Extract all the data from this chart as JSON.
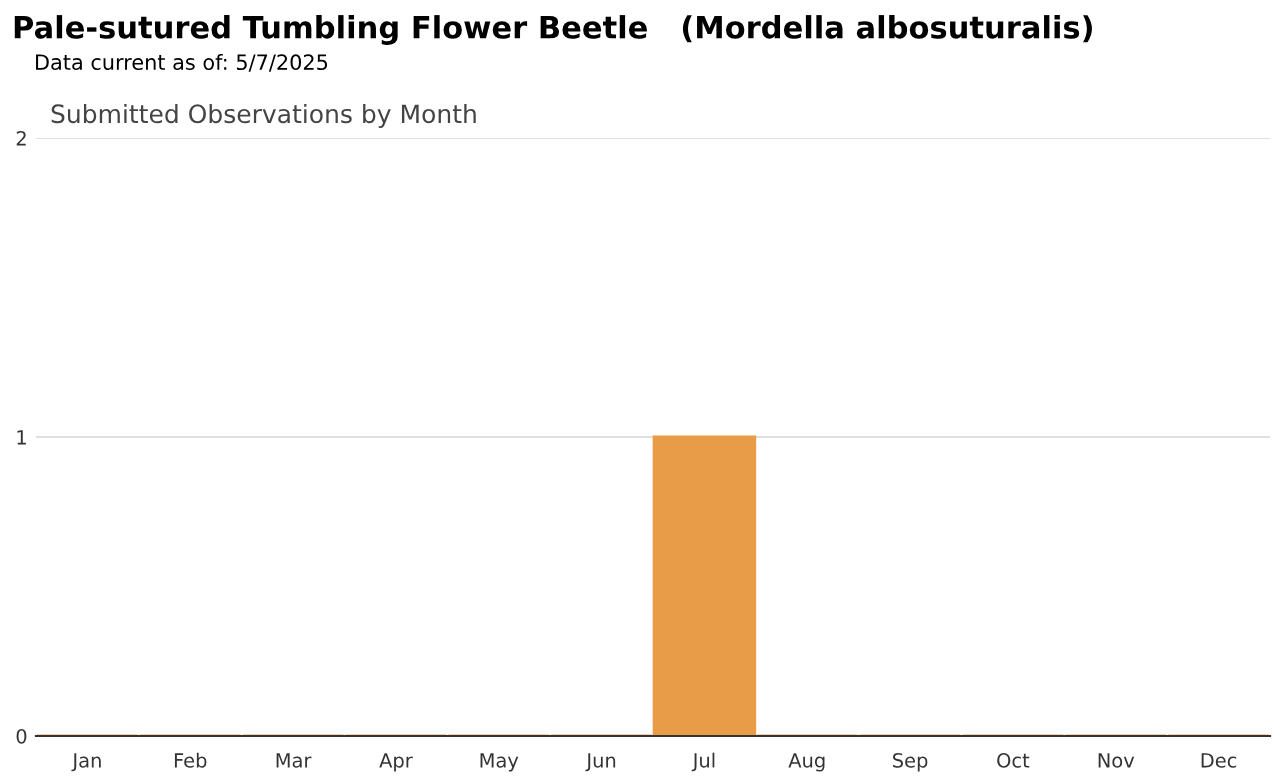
{
  "chart_data": {
    "type": "bar",
    "title": "Pale-sutured Tumbling Flower Beetle   (Mordella albosuturalis)",
    "subtitle": "Data current as of: 5/7/2025",
    "annotations": [
      "Submitted Observations by Month"
    ],
    "categories": [
      "Jan",
      "Feb",
      "Mar",
      "Apr",
      "May",
      "Jun",
      "Jul",
      "Aug",
      "Sep",
      "Oct",
      "Nov",
      "Dec"
    ],
    "values": [
      0,
      0,
      0,
      0,
      0,
      0,
      1,
      0,
      0,
      0,
      0,
      0
    ],
    "color": "#e89c48",
    "ylim": [
      0,
      2
    ],
    "yticks": [
      0,
      1,
      2
    ],
    "grid": "y"
  }
}
